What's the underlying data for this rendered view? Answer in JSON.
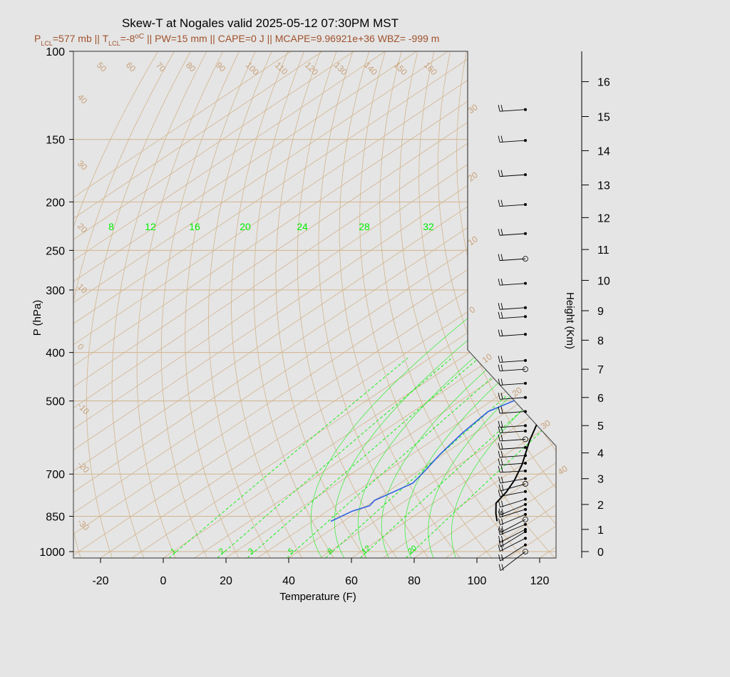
{
  "header": {
    "title": "Skew-T at Nogales valid 2025-05-12 07:30PM MST",
    "subtitle_p_lcl": "577 mb",
    "subtitle_t_lcl": "-8",
    "subtitle_rest": "PW=15 mm || CAPE=0 J || MCAPE=9.96921e+36 WBZ= -999 m",
    "sub_P": "P",
    "sub_T": "T",
    "sub_LCL": "LCL",
    "sub_sep": " || ",
    "sub_eq": "=",
    "sub_degC": "oC"
  },
  "colors": {
    "background": "#e5e5e5",
    "temperature": "#000000",
    "dewpoint": "#3060e0",
    "isotherm": "#d2b48c",
    "mixing_ratio": "#00ee00",
    "isotherm_label": "#c8a078",
    "subtitle": "#a0522d"
  },
  "chart_data": {
    "type": "line",
    "title": "Skew-T at Nogales valid 2025-05-12 07:30PM MST",
    "xlabel": "Temperature (F)",
    "ylabel": "P (hPa)",
    "y2label": "Height (Km)",
    "xlim": [
      -28,
      125
    ],
    "ylim": [
      1030,
      100
    ],
    "y_scale": "log",
    "x_ticks": [
      -20,
      0,
      20,
      40,
      60,
      80,
      100,
      120
    ],
    "p_ticks": [
      100,
      150,
      200,
      250,
      300,
      400,
      500,
      700,
      850,
      1000
    ],
    "height_ticks": [
      0,
      1,
      2,
      3,
      4,
      5,
      6,
      7,
      8,
      9,
      10,
      11,
      12,
      13,
      14,
      15,
      16
    ],
    "height_tick_pressure": [
      1000,
      903,
      805,
      715,
      635,
      560,
      492,
      432,
      378,
      330,
      287,
      249,
      215,
      185,
      158,
      135,
      115
    ],
    "series": [
      {
        "key": "temperature",
        "points": [
          [
            89,
            870
          ],
          [
            85,
            840
          ],
          [
            80,
            800
          ],
          [
            78,
            760
          ],
          [
            75,
            720
          ],
          [
            70,
            670
          ],
          [
            61,
            600
          ],
          [
            52,
            530
          ],
          [
            44,
            470
          ],
          [
            40,
            430
          ],
          [
            36,
            385
          ],
          [
            33,
            350
          ],
          [
            29,
            310
          ],
          [
            25,
            275
          ],
          [
            19,
            238
          ],
          [
            14,
            212
          ],
          [
            9,
            195
          ],
          [
            4,
            175
          ],
          [
            1,
            165
          ],
          [
            8,
            150
          ],
          [
            16,
            133
          ],
          [
            40,
            100
          ]
        ]
      },
      {
        "key": "dewpoint",
        "points": [
          [
            36,
            870
          ],
          [
            38,
            830
          ],
          [
            41,
            810
          ],
          [
            40,
            790
          ],
          [
            42,
            760
          ],
          [
            44,
            730
          ],
          [
            42,
            690
          ],
          [
            39,
            640
          ],
          [
            36,
            580
          ],
          [
            34,
            525
          ],
          [
            37,
            500
          ],
          [
            40,
            470
          ],
          [
            40,
            440
          ],
          [
            38,
            410
          ],
          [
            34,
            380
          ],
          [
            30,
            350
          ],
          [
            25,
            315
          ],
          [
            16,
            270
          ],
          [
            8,
            238
          ],
          [
            0,
            210
          ],
          [
            -6,
            198
          ],
          [
            -12,
            178
          ],
          [
            -16,
            158
          ],
          [
            -20,
            140
          ],
          [
            9,
            100
          ]
        ]
      }
    ],
    "isotherms_F": [
      -100,
      -90,
      -80,
      -70,
      -60,
      -50,
      -40,
      -30,
      -20,
      -10,
      0,
      10,
      20,
      30,
      40,
      50,
      60,
      70,
      80,
      90,
      100,
      110,
      120,
      130,
      140,
      150,
      160
    ],
    "isotherm_labels_top": [
      "50",
      "60",
      "70",
      "80",
      "90",
      "100",
      "110",
      "120",
      "130",
      "140",
      "150",
      "160"
    ],
    "isotherm_labels_left": [
      "40",
      "30",
      "20",
      "10",
      "0",
      "-10",
      "-20",
      "-30"
    ],
    "isotherm_labels_right": [
      "30",
      "20",
      "10",
      "0",
      "10",
      "20",
      "30",
      "40"
    ],
    "mixing_ratio_g_per_kg": [
      1,
      2,
      3,
      5,
      8,
      12,
      20
    ],
    "mixing_ratio_labels": [
      "1",
      "2",
      "3",
      "5",
      "8",
      "12",
      "20"
    ],
    "wetbulb_labels": [
      "8",
      "12",
      "16",
      "20",
      "24",
      "28",
      "32"
    ],
    "wind_barb_levels": [
      0,
      0.3,
      0.6,
      0.9,
      1.0,
      1.2,
      1.4,
      1.6,
      1.8,
      2.0,
      2.2,
      2.5,
      2.8,
      3.0,
      3.3,
      3.6,
      3.9,
      4.2,
      4.5,
      4.8,
      5.0,
      5.5,
      6.0,
      6.5,
      7.0,
      7.3,
      8.2,
      8.8,
      9.1,
      9.9,
      10.7,
      11.5,
      12.4,
      13.3,
      14.3,
      15.2
    ],
    "legend": "none",
    "grid": true
  }
}
